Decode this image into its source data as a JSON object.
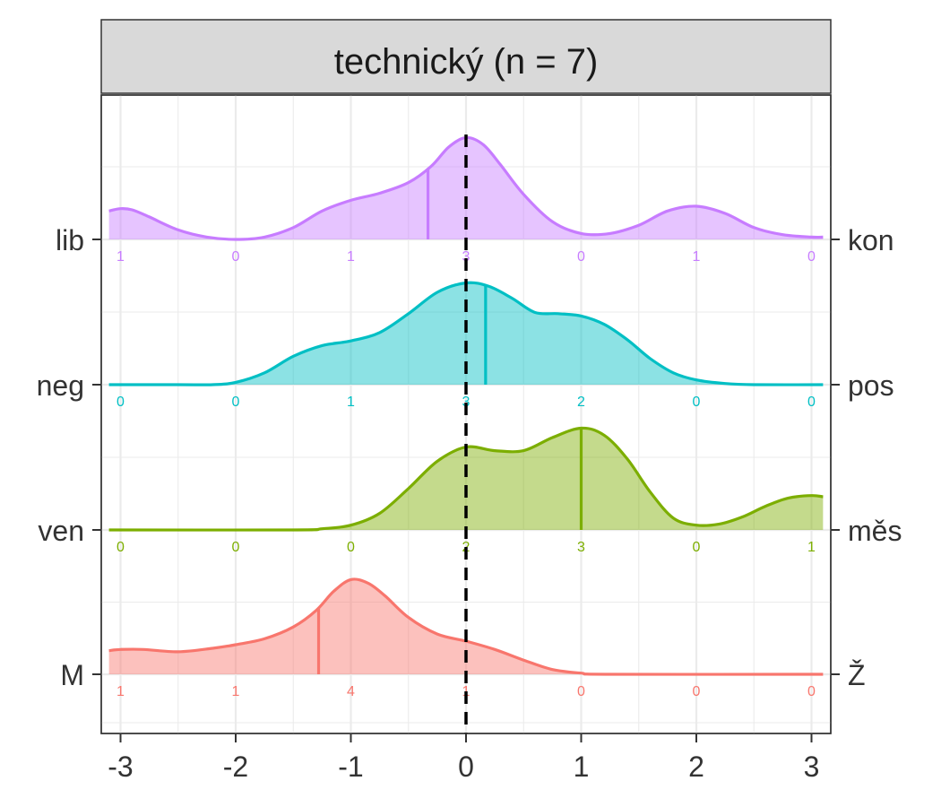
{
  "chart_data": {
    "type": "ridgeline",
    "title": "technický (n = 7)",
    "xlim": [
      -3,
      3
    ],
    "x_ticks": [
      "-3",
      "-2",
      "-1",
      "0",
      "1",
      "2",
      "3"
    ],
    "count_x": [
      -3,
      -2,
      -1,
      0,
      1,
      2,
      3
    ],
    "reference_line_x": 0,
    "grid": true,
    "series": [
      {
        "left_label": "lib",
        "right_label": "kon",
        "color": "#C77CFF",
        "mean": -0.33,
        "counts": [
          "1",
          "0",
          "1",
          "3",
          "0",
          "1",
          "0"
        ],
        "density": [
          [
            -3.1,
            0.24
          ],
          [
            -3.0,
            0.26
          ],
          [
            -2.9,
            0.25
          ],
          [
            -2.75,
            0.19
          ],
          [
            -2.5,
            0.08
          ],
          [
            -2.25,
            0.02
          ],
          [
            -2.0,
            0.0
          ],
          [
            -1.75,
            0.02
          ],
          [
            -1.5,
            0.1
          ],
          [
            -1.25,
            0.24
          ],
          [
            -1.0,
            0.33
          ],
          [
            -0.75,
            0.39
          ],
          [
            -0.5,
            0.48
          ],
          [
            -0.3,
            0.62
          ],
          [
            -0.15,
            0.78
          ],
          [
            0.0,
            0.86
          ],
          [
            0.15,
            0.8
          ],
          [
            0.3,
            0.63
          ],
          [
            0.5,
            0.38
          ],
          [
            0.75,
            0.15
          ],
          [
            1.0,
            0.05
          ],
          [
            1.25,
            0.05
          ],
          [
            1.5,
            0.12
          ],
          [
            1.75,
            0.24
          ],
          [
            2.0,
            0.28
          ],
          [
            2.25,
            0.22
          ],
          [
            2.5,
            0.1
          ],
          [
            2.75,
            0.04
          ],
          [
            3.0,
            0.02
          ],
          [
            3.1,
            0.02
          ]
        ]
      },
      {
        "left_label": "neg",
        "right_label": "pos",
        "color": "#00BFC4",
        "mean": 0.17,
        "counts": [
          "0",
          "0",
          "1",
          "3",
          "2",
          "0",
          "0"
        ],
        "density": [
          [
            -3.1,
            0.0
          ],
          [
            -2.5,
            0.0
          ],
          [
            -2.2,
            0.0
          ],
          [
            -2.0,
            0.02
          ],
          [
            -1.75,
            0.1
          ],
          [
            -1.5,
            0.24
          ],
          [
            -1.25,
            0.33
          ],
          [
            -1.0,
            0.37
          ],
          [
            -0.75,
            0.44
          ],
          [
            -0.5,
            0.6
          ],
          [
            -0.25,
            0.78
          ],
          [
            0.0,
            0.86
          ],
          [
            0.2,
            0.83
          ],
          [
            0.4,
            0.73
          ],
          [
            0.6,
            0.61
          ],
          [
            0.8,
            0.6
          ],
          [
            1.0,
            0.58
          ],
          [
            1.2,
            0.51
          ],
          [
            1.4,
            0.38
          ],
          [
            1.6,
            0.22
          ],
          [
            1.8,
            0.1
          ],
          [
            2.0,
            0.04
          ],
          [
            2.25,
            0.01
          ],
          [
            2.5,
            0.0
          ],
          [
            3.1,
            0.0
          ]
        ]
      },
      {
        "left_label": "ven",
        "right_label": "měs",
        "color": "#7CAE00",
        "mean": 1.0,
        "counts": [
          "0",
          "0",
          "0",
          "2",
          "3",
          "0",
          "1"
        ],
        "density": [
          [
            -3.1,
            0.0
          ],
          [
            -1.5,
            0.0
          ],
          [
            -1.25,
            0.01
          ],
          [
            -1.0,
            0.04
          ],
          [
            -0.75,
            0.14
          ],
          [
            -0.5,
            0.35
          ],
          [
            -0.25,
            0.58
          ],
          [
            0.0,
            0.7
          ],
          [
            0.25,
            0.67
          ],
          [
            0.5,
            0.67
          ],
          [
            0.75,
            0.78
          ],
          [
            1.0,
            0.86
          ],
          [
            1.2,
            0.8
          ],
          [
            1.4,
            0.6
          ],
          [
            1.6,
            0.32
          ],
          [
            1.8,
            0.1
          ],
          [
            2.0,
            0.04
          ],
          [
            2.2,
            0.05
          ],
          [
            2.4,
            0.11
          ],
          [
            2.6,
            0.2
          ],
          [
            2.8,
            0.27
          ],
          [
            3.0,
            0.29
          ],
          [
            3.1,
            0.28
          ]
        ]
      },
      {
        "left_label": "M",
        "right_label": "Ž",
        "color": "#F8766D",
        "mean": -1.28,
        "counts": [
          "1",
          "1",
          "4",
          "1",
          "0",
          "0",
          "0"
        ],
        "density": [
          [
            -3.1,
            0.2
          ],
          [
            -3.0,
            0.21
          ],
          [
            -2.8,
            0.21
          ],
          [
            -2.5,
            0.19
          ],
          [
            -2.2,
            0.22
          ],
          [
            -2.0,
            0.25
          ],
          [
            -1.75,
            0.3
          ],
          [
            -1.5,
            0.4
          ],
          [
            -1.3,
            0.54
          ],
          [
            -1.15,
            0.7
          ],
          [
            -1.0,
            0.8
          ],
          [
            -0.85,
            0.77
          ],
          [
            -0.7,
            0.66
          ],
          [
            -0.5,
            0.48
          ],
          [
            -0.25,
            0.34
          ],
          [
            0.0,
            0.28
          ],
          [
            0.25,
            0.21
          ],
          [
            0.5,
            0.12
          ],
          [
            0.75,
            0.04
          ],
          [
            1.0,
            0.01
          ],
          [
            1.25,
            0.0
          ],
          [
            3.1,
            0.0
          ]
        ]
      }
    ]
  }
}
